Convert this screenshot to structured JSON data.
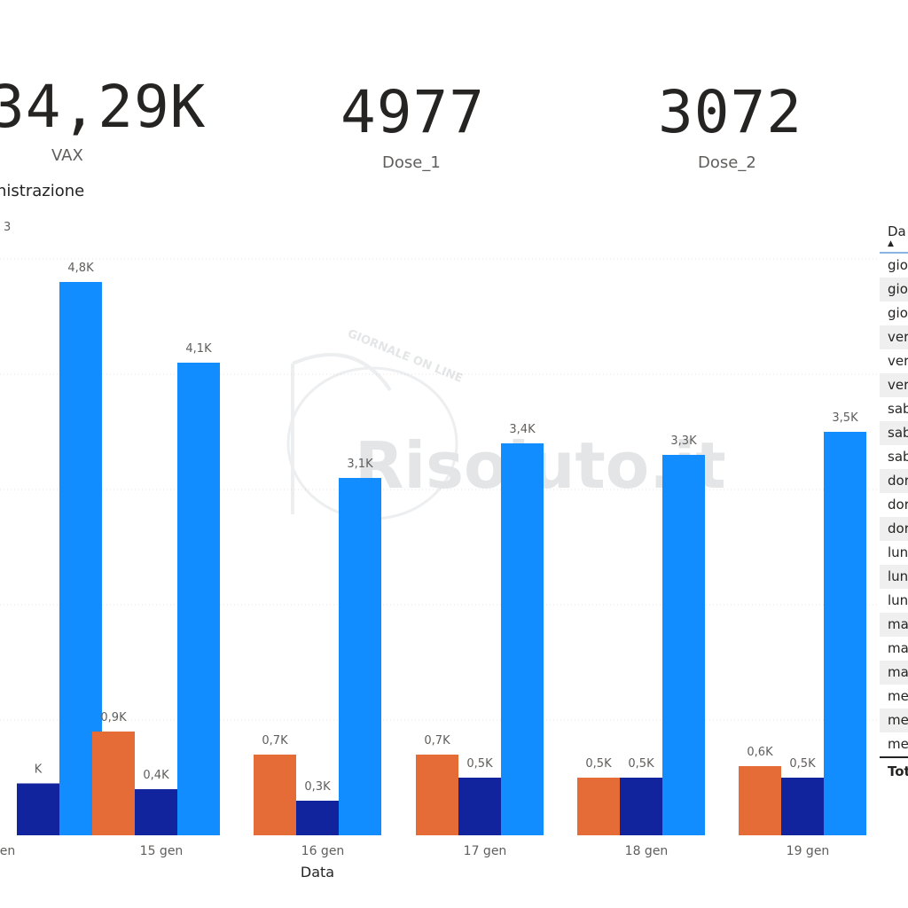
{
  "kpis": [
    {
      "value": "34,29K",
      "label": "VAX"
    },
    {
      "value": "4977",
      "label": "Dose_1"
    },
    {
      "value": "3072",
      "label": "Dose_2"
    }
  ],
  "chart_title": "nistrazione",
  "chart_data": {
    "type": "bar",
    "xlabel": "Data",
    "ylabel": "",
    "ylim": [
      0,
      5.3
    ],
    "categories": [
      "gen",
      "15 gen",
      "16 gen",
      "17 gen",
      "18 gen",
      "19 gen"
    ],
    "series": [
      {
        "color": "#e66c37",
        "values": [
          null,
          0.9,
          0.7,
          0.7,
          0.5,
          0.6
        ],
        "labels": [
          "",
          "0,9K",
          "0,7K",
          "0,7K",
          "0,5K",
          "0,6K"
        ]
      },
      {
        "color": "#12239e",
        "values": [
          0.45,
          0.4,
          0.3,
          0.5,
          0.5,
          0.5
        ],
        "labels": [
          "K",
          "0,4K",
          "0,3K",
          "0,5K",
          "0,5K",
          "0,5K"
        ]
      },
      {
        "color": "#118dff",
        "values": [
          4.8,
          4.1,
          3.1,
          3.4,
          3.3,
          3.5
        ],
        "labels": [
          "4,8K",
          "4,1K",
          "3,1K",
          "3,4K",
          "3,3K",
          "3,5K"
        ]
      }
    ],
    "extra_labels": [
      "3"
    ],
    "grid": true,
    "legend": "none"
  },
  "table": {
    "header": "Da",
    "sort_arrow": "▲",
    "rows": [
      "gio",
      "gio",
      "gio",
      "ver",
      "ver",
      "ver",
      "sab",
      "sab",
      "sab",
      "dor",
      "dor",
      "dor",
      "lun",
      "lun",
      "lun",
      "ma",
      "ma",
      "ma",
      "me",
      "me",
      "me"
    ],
    "total": "Tot"
  },
  "watermark": {
    "line1": "GIORNALE ON LINE",
    "line2": "Risoluto.it"
  }
}
